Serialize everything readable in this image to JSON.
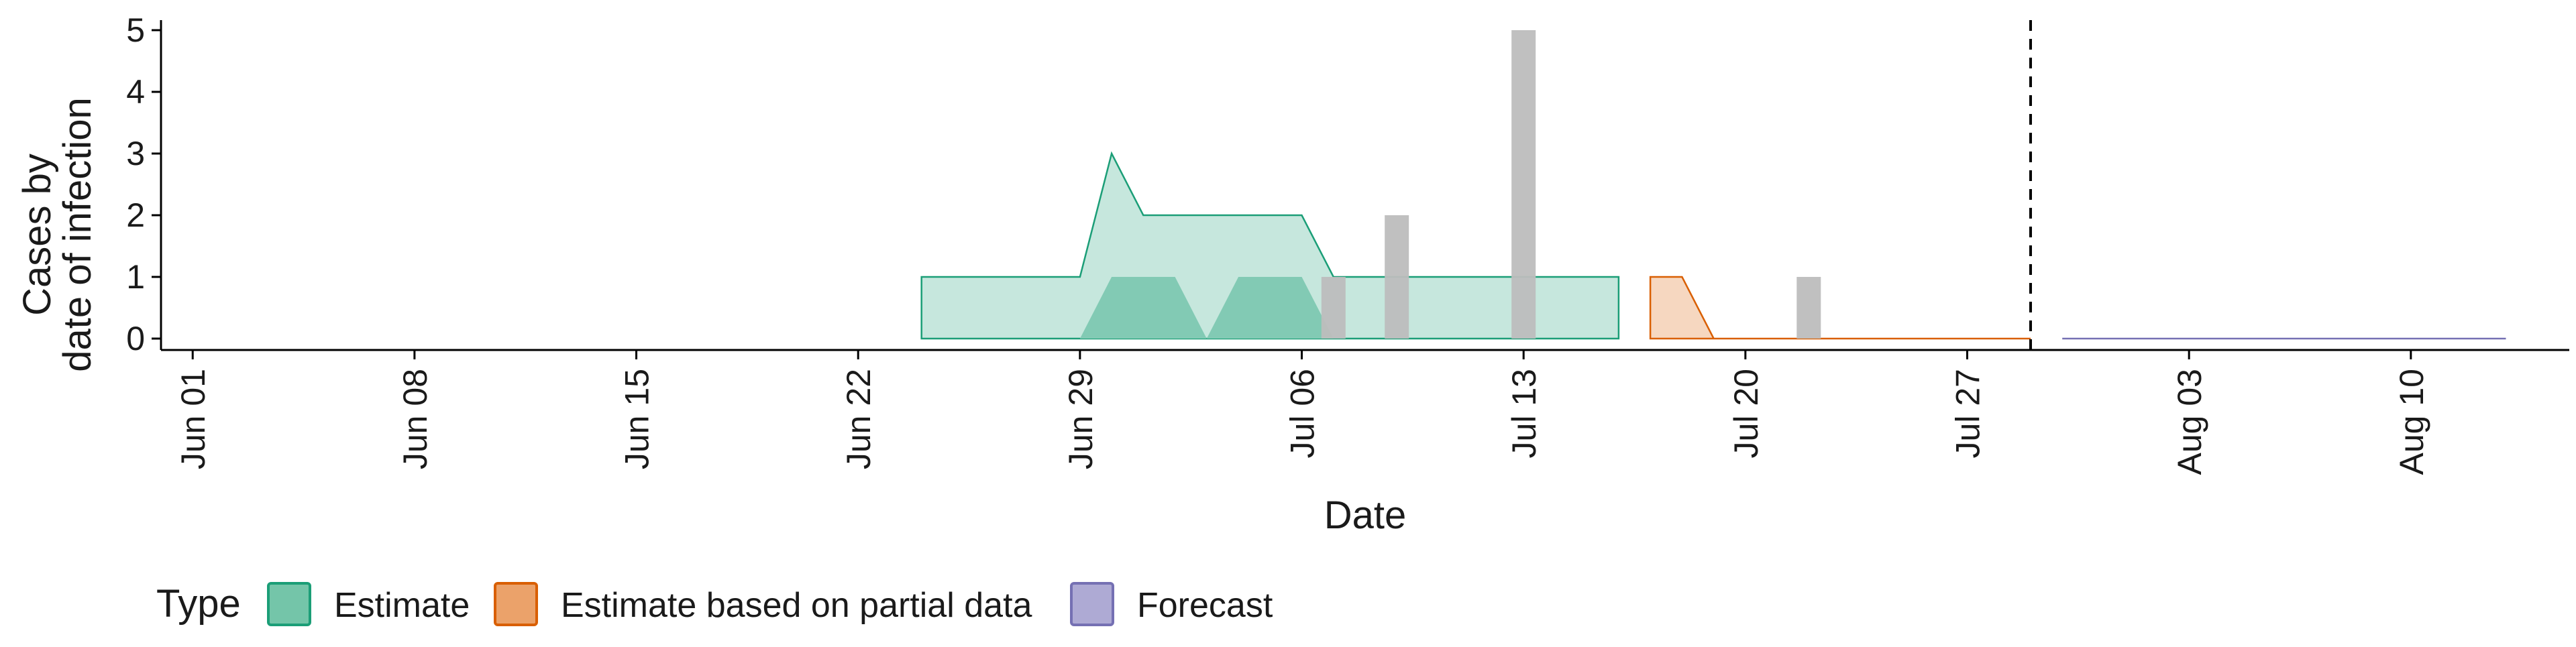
{
  "chart_data": {
    "type": "area",
    "xlabel": "Date",
    "ylabel": [
      "Cases by",
      "date of infection"
    ],
    "x_ticks": [
      "Jun 01",
      "Jun 08",
      "Jun 15",
      "Jun 22",
      "Jun 29",
      "Jul 06",
      "Jul 13",
      "Jul 20",
      "Jul 27",
      "Aug 03",
      "Aug 10"
    ],
    "y_ticks": [
      "0",
      "1",
      "2",
      "3",
      "4",
      "5"
    ],
    "xlim": [
      "2020-05-31",
      "2020-08-15"
    ],
    "ylim": [
      0,
      5.3
    ],
    "nowcast_date": "2020-07-29",
    "reported_cases": [
      {
        "date": "2020-07-07",
        "cases": 1
      },
      {
        "date": "2020-07-09",
        "cases": 2
      },
      {
        "date": "2020-07-13",
        "cases": 5
      },
      {
        "date": "2020-07-22",
        "cases": 1
      }
    ],
    "series": [
      {
        "name": "Estimate",
        "color": "#1b9e77",
        "ribbon_outer": [
          {
            "date": "2020-06-24",
            "lower": 0,
            "upper": 1
          },
          {
            "date": "2020-06-29",
            "lower": 0,
            "upper": 1
          },
          {
            "date": "2020-06-30",
            "lower": 0,
            "upper": 3
          },
          {
            "date": "2020-07-01",
            "lower": 0,
            "upper": 2
          },
          {
            "date": "2020-07-06",
            "lower": 0,
            "upper": 2
          },
          {
            "date": "2020-07-07",
            "lower": 0,
            "upper": 1
          },
          {
            "date": "2020-07-16",
            "lower": 0,
            "upper": 1
          }
        ],
        "ribbon_inner": [
          {
            "date": "2020-06-29",
            "lower": 0,
            "upper": 0
          },
          {
            "date": "2020-06-30",
            "lower": 0,
            "upper": 1
          },
          {
            "date": "2020-07-02",
            "lower": 0,
            "upper": 1
          },
          {
            "date": "2020-07-03",
            "lower": 0,
            "upper": 0
          },
          {
            "date": "2020-07-04",
            "lower": 0,
            "upper": 1
          },
          {
            "date": "2020-07-06",
            "lower": 0,
            "upper": 1
          },
          {
            "date": "2020-07-07",
            "lower": 0,
            "upper": 0
          }
        ]
      },
      {
        "name": "Estimate based on partial data",
        "color": "#d95f02",
        "ribbon_outer": [
          {
            "date": "2020-07-17",
            "lower": 0,
            "upper": 1
          },
          {
            "date": "2020-07-18",
            "lower": 0,
            "upper": 1
          },
          {
            "date": "2020-07-19",
            "lower": 0,
            "upper": 0
          },
          {
            "date": "2020-07-29",
            "lower": 0,
            "upper": 0
          }
        ],
        "ribbon_inner": []
      },
      {
        "name": "Forecast",
        "color": "#7570b3",
        "ribbon_outer": [
          {
            "date": "2020-07-30",
            "lower": 0,
            "upper": 0
          },
          {
            "date": "2020-08-13",
            "lower": 0,
            "upper": 0
          }
        ],
        "ribbon_inner": []
      }
    ],
    "legend": {
      "title": "Type",
      "position": "bottom-left",
      "items": [
        {
          "label": "Estimate",
          "fill": "#74c5a9",
          "stroke": "#1b9e77"
        },
        {
          "label": "Estimate based on partial data",
          "fill": "#eba26a",
          "stroke": "#d95f02"
        },
        {
          "label": "Forecast",
          "fill": "#aeaad4",
          "stroke": "#7570b3"
        }
      ]
    },
    "colors": {
      "bar": "#bdbdbd",
      "axis": "#000000",
      "nowcast_line": "#000000"
    }
  }
}
